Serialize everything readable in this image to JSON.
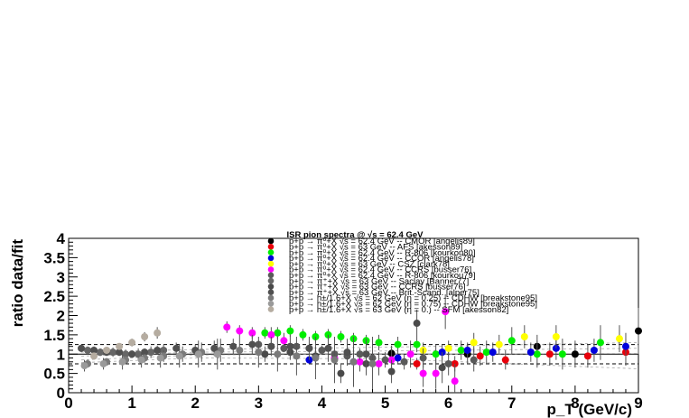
{
  "chart_data": {
    "type": "scatter",
    "title": "ISR pion spectra @ √s = 62.4 GeV",
    "xlabel": "p_T (GeV/c)",
    "ylabel": "ratio data/fit",
    "xlim": [
      0,
      9
    ],
    "ylim": [
      0,
      4
    ],
    "x_ticks": [
      0,
      1,
      2,
      3,
      4,
      5,
      6,
      7,
      8,
      9
    ],
    "y_ticks": [
      0,
      0.5,
      1,
      1.5,
      2,
      2.5,
      3,
      3.5,
      4
    ],
    "x_tick_labels": [
      "0",
      "1",
      "2",
      "3",
      "4",
      "5",
      "6",
      "7",
      "8",
      "9"
    ],
    "y_tick_labels": [
      "0",
      "0.5",
      "1",
      "1.5",
      "2",
      "2.5",
      "3",
      "3.5",
      "4"
    ],
    "reference_lines": [
      1.0,
      1.25,
      0.75
    ],
    "legend_position": "top-center",
    "series": [
      {
        "name": "p+p → π⁰+X √s = 62.4 GeV -- CMOR [angelis89]",
        "color": "#000000",
        "x": [
          5.1,
          6.3,
          7.4,
          8.0,
          9.0
        ],
        "y": [
          1.02,
          1.0,
          1.2,
          1.0,
          1.6
        ],
        "err": [
          0.2,
          0.25,
          0.3,
          0.35,
          0.6
        ]
      },
      {
        "name": "p+p → π⁰+X √s = 63 GeV -- AFS [akesson89]",
        "color": "#e8000b",
        "x": [
          5.5,
          6.1,
          6.5,
          6.9,
          7.6,
          8.2,
          8.8
        ],
        "y": [
          0.75,
          0.75,
          0.95,
          0.85,
          1.0,
          0.95,
          1.05
        ],
        "err": [
          0.15,
          0.2,
          0.25,
          0.25,
          0.3,
          0.3,
          0.35
        ]
      },
      {
        "name": "p+p → π⁰+X √s = 62.4 GeV -- R-806 [kourkou80]",
        "color": "#00ee00",
        "x": [
          3.1,
          3.3,
          3.5,
          3.7,
          3.9,
          4.1,
          4.3,
          4.5,
          4.7,
          4.9,
          5.2,
          5.5,
          5.8,
          6.2,
          6.6,
          7.0,
          7.4,
          7.8,
          8.4
        ],
        "y": [
          1.55,
          1.55,
          1.6,
          1.5,
          1.45,
          1.5,
          1.45,
          1.4,
          1.35,
          1.3,
          1.25,
          1.25,
          1.0,
          1.1,
          1.05,
          1.35,
          1.0,
          1.0,
          1.3
        ],
        "err": [
          0.15,
          0.15,
          0.15,
          0.15,
          0.15,
          0.15,
          0.15,
          0.15,
          0.15,
          0.2,
          0.2,
          0.2,
          0.25,
          0.25,
          0.3,
          0.35,
          0.35,
          0.4,
          0.45
        ]
      },
      {
        "name": "p+p → π⁰+X √s = 62.4 GeV -- CCOR [angelis78]",
        "color": "#0000dd",
        "x": [
          3.8,
          4.5,
          5.2,
          5.9,
          6.3,
          6.7,
          7.3,
          7.7,
          8.3,
          8.8
        ],
        "y": [
          0.85,
          0.8,
          0.9,
          1.05,
          1.1,
          1.05,
          1.05,
          1.15,
          1.1,
          1.2
        ],
        "err": [
          0.1,
          0.12,
          0.15,
          0.2,
          0.2,
          0.25,
          0.25,
          0.3,
          0.3,
          0.35
        ]
      },
      {
        "name": "p+p → π⁰+X √s = 63 GeV -- CSZ [clark78]",
        "color": "#ffff00",
        "x": [
          5.6,
          6.0,
          6.4,
          6.8,
          7.2,
          7.7,
          8.7
        ],
        "y": [
          1.1,
          1.15,
          1.3,
          1.25,
          1.45,
          1.45,
          1.4
        ],
        "err": [
          0.2,
          0.2,
          0.25,
          0.25,
          0.3,
          0.3,
          0.35
        ]
      },
      {
        "name": "p+p → π⁰+X √s = 62.4 GeV -- CCRS [busser76]",
        "color": "#ff00ff",
        "x": [
          2.5,
          2.7,
          2.9,
          3.2,
          3.4,
          4.2,
          4.6,
          4.9,
          5.1,
          5.4,
          5.6,
          5.8,
          5.95,
          6.1
        ],
        "y": [
          1.7,
          1.6,
          1.55,
          1.5,
          1.35,
          0.9,
          0.8,
          0.75,
          0.85,
          1.0,
          0.5,
          0.5,
          2.1,
          0.3
        ],
        "err": [
          0.15,
          0.15,
          0.15,
          0.2,
          0.2,
          0.25,
          0.25,
          0.3,
          0.3,
          0.35,
          0.35,
          0.4,
          0.45,
          0.45
        ]
      },
      {
        "name": "p+p → π⁰+X √s = 62.4 GeV -- R-806 [kourkou79]",
        "color": "#5a5a5a",
        "x": [
          3.0,
          3.2,
          3.4,
          3.6,
          3.8,
          4.0,
          4.2,
          4.4,
          4.6,
          4.8,
          5.0,
          5.3,
          5.6,
          6.0,
          6.4
        ],
        "y": [
          1.25,
          1.2,
          1.15,
          1.2,
          1.15,
          1.1,
          1.0,
          0.95,
          1.0,
          0.9,
          0.85,
          0.8,
          0.9,
          0.75,
          0.85
        ],
        "err": [
          0.1,
          0.1,
          0.1,
          0.1,
          0.1,
          0.12,
          0.12,
          0.15,
          0.15,
          0.15,
          0.2,
          0.2,
          0.25,
          0.3,
          0.3
        ]
      },
      {
        "name": "p+p → π⁺+X √s = 63 GeV -- Saclay [Banner77]",
        "color": "#666666",
        "x": [
          0.3,
          0.5,
          0.7,
          0.9,
          1.1,
          1.3,
          1.5
        ],
        "y": [
          1.1,
          1.05,
          1.05,
          1.0,
          1.0,
          1.05,
          1.1
        ],
        "err": [
          0.1,
          0.1,
          0.12,
          0.12,
          0.15,
          0.15,
          0.15
        ]
      },
      {
        "name": "p+p → π⁺+X √s = 63 GeV -- CCRS [busser76]",
        "color": "#4a4a4a",
        "x": [
          3.1,
          3.5,
          3.9,
          4.3,
          4.7,
          5.1,
          5.5,
          5.9
        ],
        "y": [
          1.0,
          1.05,
          0.95,
          0.5,
          0.75,
          0.55,
          1.8,
          0.65
        ],
        "err": [
          0.2,
          0.2,
          0.25,
          0.25,
          0.3,
          0.3,
          0.35,
          0.4
        ]
      },
      {
        "name": "p+p → π⁺+X √s = 63 GeV -- Brit.-Scand. [alper75]",
        "color": "#505050",
        "x": [
          0.2,
          0.4,
          0.6,
          0.8,
          1.0,
          1.2,
          1.4,
          1.7,
          2.0,
          2.3,
          2.6,
          2.9,
          3.2,
          3.5,
          3.8,
          4.1,
          4.4,
          4.7
        ],
        "y": [
          1.15,
          1.1,
          1.05,
          1.05,
          1.0,
          1.05,
          1.1,
          1.15,
          1.1,
          1.15,
          1.2,
          1.25,
          1.2,
          1.2,
          1.15,
          1.15,
          1.05,
          1.0
        ],
        "err": [
          0.1,
          0.1,
          0.1,
          0.1,
          0.1,
          0.1,
          0.12,
          0.15,
          0.15,
          0.2,
          0.2,
          0.25,
          0.25,
          0.3,
          0.3,
          0.35,
          0.35,
          0.4
        ]
      },
      {
        "name": "p+p → h±/1.6+X √s = 62 GeV (η = 0.25) -- CDHW [breakstone95]",
        "color": "#7a7a7a",
        "x": [
          0.3,
          0.6,
          0.9,
          1.2,
          1.5,
          1.8,
          2.1,
          2.4,
          2.7,
          3.0,
          3.3,
          3.6,
          3.9,
          4.2,
          4.5,
          4.8
        ],
        "y": [
          0.75,
          0.8,
          0.85,
          0.9,
          0.95,
          1.0,
          1.05,
          1.1,
          1.1,
          1.05,
          1.0,
          0.95,
          0.9,
          0.85,
          0.8,
          0.75
        ],
        "err": [
          0.1,
          0.1,
          0.1,
          0.12,
          0.15,
          0.2,
          0.25,
          0.3,
          0.35,
          0.4,
          0.45,
          0.5,
          0.55,
          0.6,
          0.65,
          0.7
        ]
      },
      {
        "name": "p+p → h±/1.6+X √s = 62 GeV (η = 0.75) -- CDHW [breakstone95]",
        "color": "#9a9a9a",
        "x": [
          0.25,
          0.55,
          0.85,
          1.15,
          1.45,
          1.75,
          2.05,
          2.35
        ],
        "y": [
          0.7,
          0.75,
          0.8,
          0.85,
          0.9,
          0.95,
          1.0,
          1.0
        ],
        "err": [
          0.15,
          0.15,
          0.2,
          0.2,
          0.25,
          0.3,
          0.35,
          0.4
        ]
      },
      {
        "name": "p+p → h±/1.6+X √s = 63 GeV (η = 0.) -- SFM [akesson82]",
        "color": "#b5aca0",
        "x": [
          0.4,
          0.6,
          0.8,
          1.0,
          1.2,
          1.4
        ],
        "y": [
          0.95,
          1.1,
          1.2,
          1.3,
          1.45,
          1.55
        ],
        "err": [
          0.05,
          0.05,
          0.08,
          0.1,
          0.12,
          0.15
        ]
      }
    ]
  }
}
